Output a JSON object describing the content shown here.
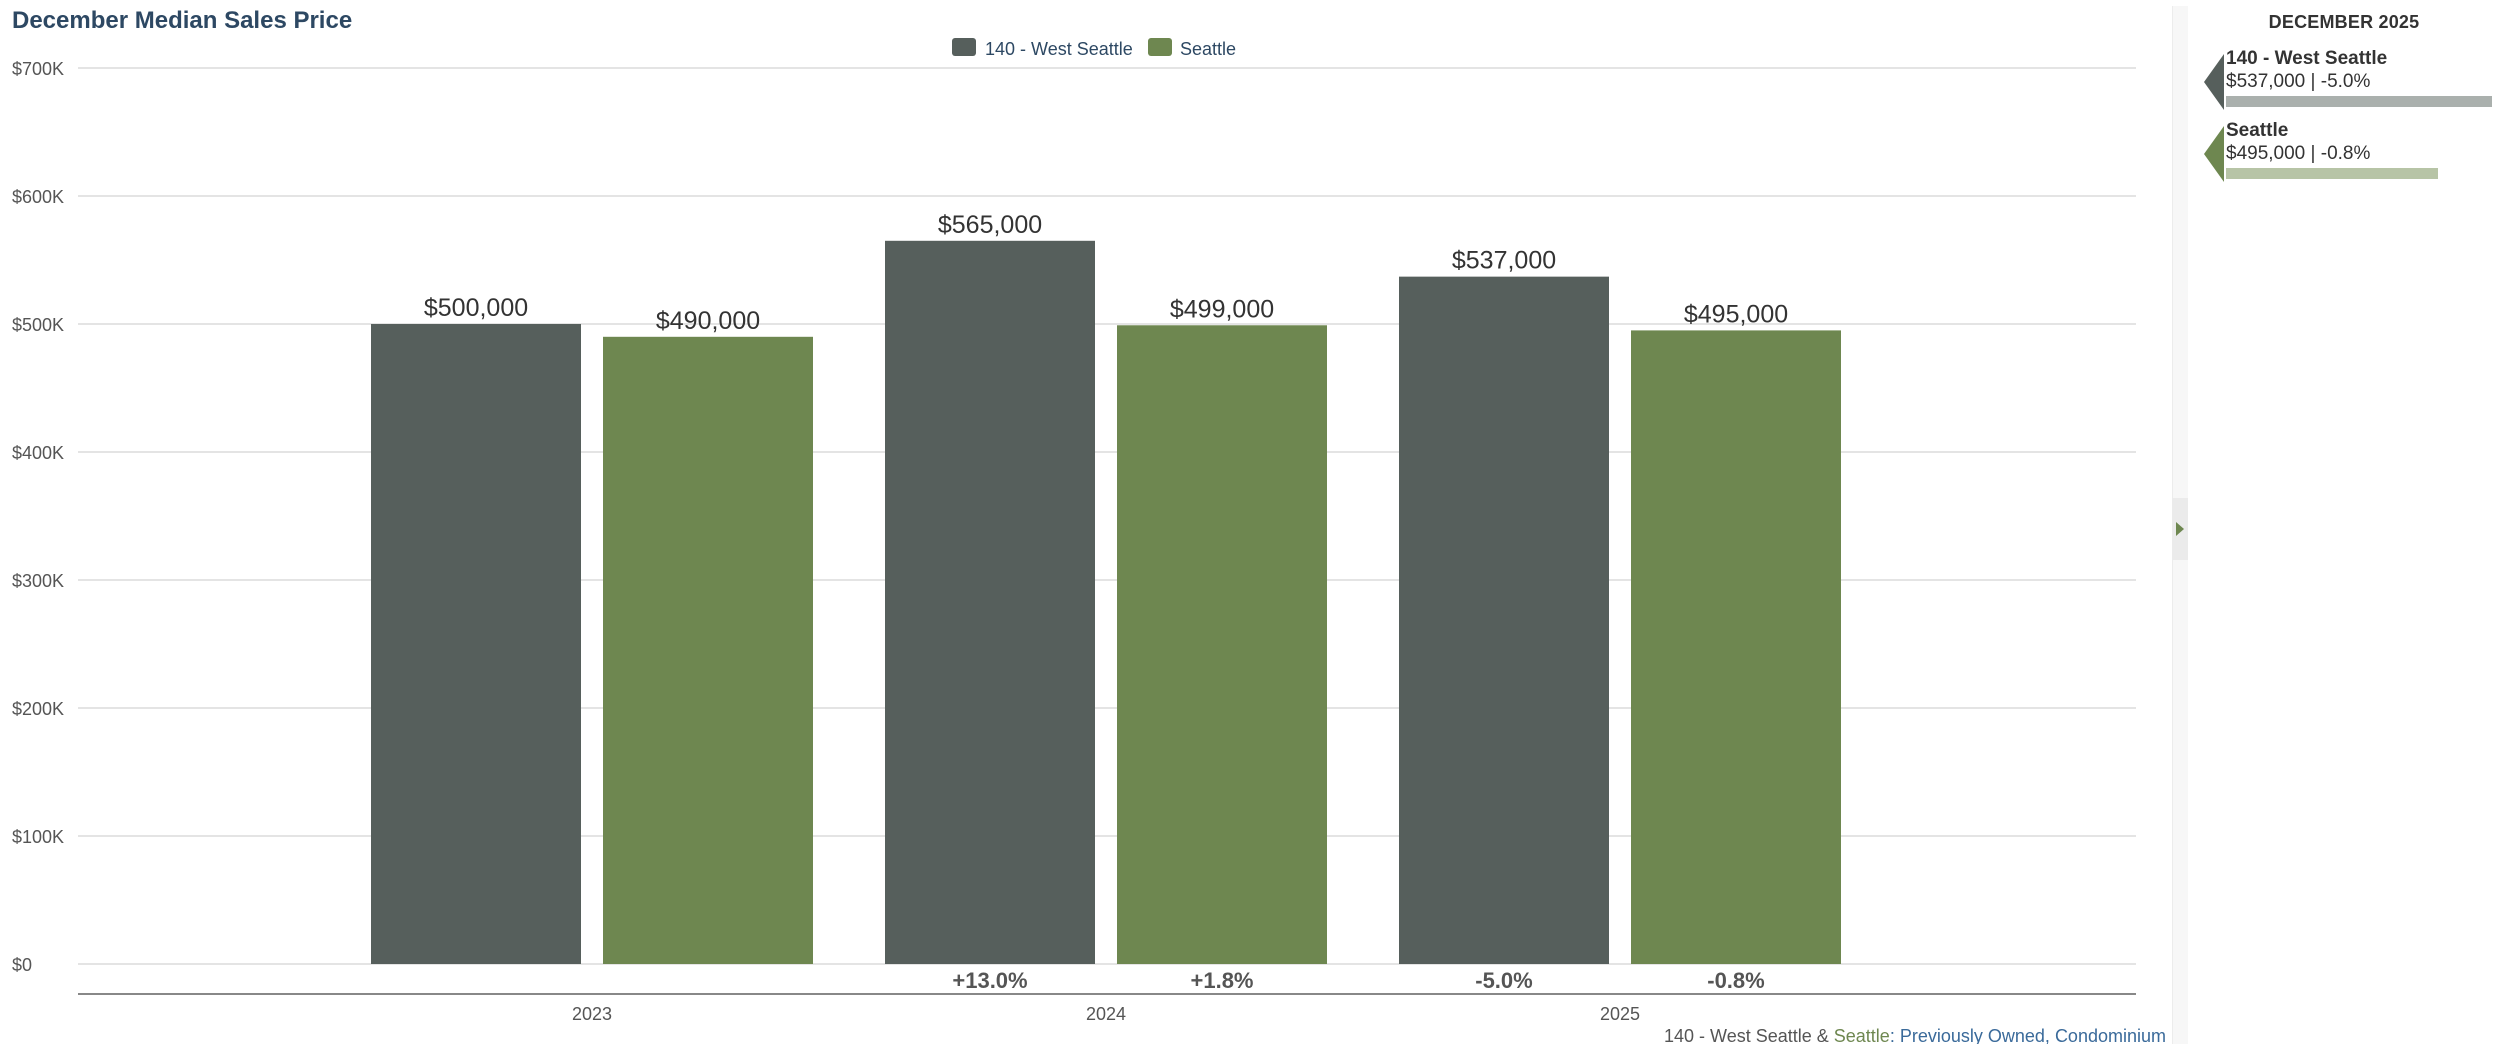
{
  "chart_data": {
    "type": "bar",
    "title": "December Median Sales Price",
    "categories": [
      "2023",
      "2024",
      "2025"
    ],
    "series": [
      {
        "name": "140 - West Seattle",
        "color": "#565f5c",
        "values": [
          500000,
          565000,
          537000
        ],
        "value_labels": [
          "$500,000",
          "$565,000",
          "$537,000"
        ],
        "change_labels": [
          "",
          "+13.0%",
          "-5.0%"
        ]
      },
      {
        "name": "Seattle",
        "color": "#6e8750",
        "values": [
          490000,
          499000,
          495000
        ],
        "value_labels": [
          "$490,000",
          "$499,000",
          "$495,000"
        ],
        "change_labels": [
          "",
          "+1.8%",
          "-0.8%"
        ]
      }
    ],
    "ylim": [
      0,
      700000
    ],
    "y_ticks": [
      0,
      100000,
      200000,
      300000,
      400000,
      500000,
      600000,
      700000
    ],
    "y_tick_labels": [
      "$0",
      "$100K",
      "$200K",
      "$300K",
      "$400K",
      "$500K",
      "$600K",
      "$700K"
    ],
    "xlabel": "",
    "ylabel": "",
    "grid": true,
    "legend_position": "top-center"
  },
  "footer": {
    "area1": "140 - West Seattle",
    "amp": " & ",
    "area2": "Seattle",
    "colon": ": ",
    "type1": "Previously Owned",
    "comma": ", ",
    "type2": "Condominium"
  },
  "side_panel": {
    "heading": "DECEMBER 2025",
    "items": [
      {
        "name": "140 - West Seattle",
        "value": "$537,000 | -5.0%",
        "color": "#565f5c",
        "bar_color": "#aab0ad",
        "bar_fraction": 1.0
      },
      {
        "name": "Seattle",
        "value": "$495,000 | -0.8%",
        "color": "#6e8750",
        "bar_color": "#b7c4a6",
        "bar_fraction": 0.797
      }
    ]
  },
  "colors": {
    "title": "#2d4863",
    "footer_link": "#3a6a9a",
    "axis_text": "#555555"
  }
}
